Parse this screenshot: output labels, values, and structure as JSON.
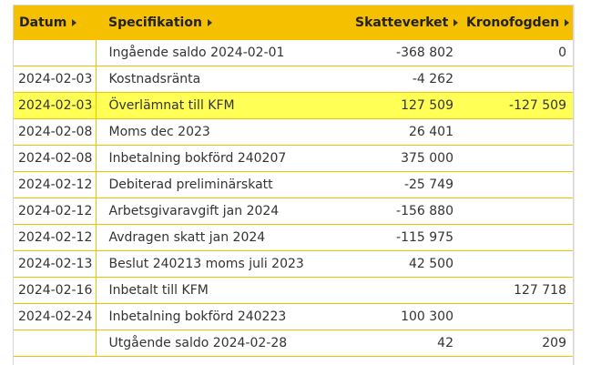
{
  "table": {
    "headers": {
      "date": "Datum",
      "spec": "Specifikation",
      "skatteverket": "Skatteverket",
      "kronofogden": "Kronofogden"
    },
    "rows": [
      {
        "date": "",
        "spec": "Ingående saldo 2024-02-01",
        "skv": "-368 802",
        "kfm": "0",
        "highlighted": false
      },
      {
        "date": "2024-02-03",
        "spec": "Kostnadsränta",
        "skv": "-4 262",
        "kfm": "",
        "highlighted": false
      },
      {
        "date": "2024-02-03",
        "spec": "Överlämnat till KFM",
        "skv": "127 509",
        "kfm": "-127 509",
        "highlighted": true
      },
      {
        "date": "2024-02-08",
        "spec": "Moms dec 2023",
        "skv": "26 401",
        "kfm": "",
        "highlighted": false
      },
      {
        "date": "2024-02-08",
        "spec": "Inbetalning bokförd 240207",
        "skv": "375 000",
        "kfm": "",
        "highlighted": false
      },
      {
        "date": "2024-02-12",
        "spec": "Debiterad preliminärskatt",
        "skv": "-25 749",
        "kfm": "",
        "highlighted": false
      },
      {
        "date": "2024-02-12",
        "spec": "Arbetsgivaravgift jan 2024",
        "skv": "-156 880",
        "kfm": "",
        "highlighted": false
      },
      {
        "date": "2024-02-12",
        "spec": "Avdragen skatt jan 2024",
        "skv": "-115 975",
        "kfm": "",
        "highlighted": false
      },
      {
        "date": "2024-02-13",
        "spec": "Beslut 240213 moms juli 2023",
        "skv": "42 500",
        "kfm": "",
        "highlighted": false
      },
      {
        "date": "2024-02-16",
        "spec": "Inbetalt till KFM",
        "skv": "",
        "kfm": "127 718",
        "highlighted": false
      },
      {
        "date": "2024-02-24",
        "spec": "Inbetalning bokförd 240223",
        "skv": "100 300",
        "kfm": "",
        "highlighted": false
      },
      {
        "date": "",
        "spec": "Utgående saldo 2024-02-28",
        "skv": "42",
        "kfm": "209",
        "highlighted": false
      }
    ]
  },
  "colors": {
    "header_bg": "#f5c000",
    "row_border": "#f5c000",
    "highlight": "#ffff55"
  },
  "icons": {
    "sort": "sort-caret-right-icon"
  }
}
